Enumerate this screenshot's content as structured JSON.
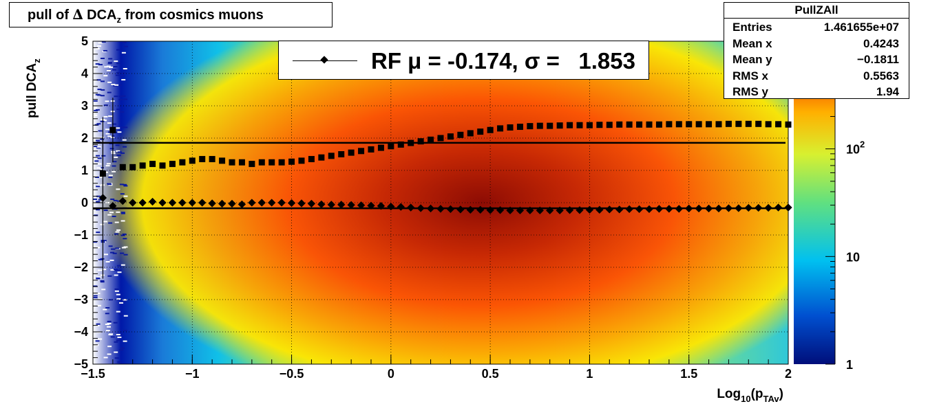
{
  "title": {
    "prefix": "pull of ",
    "delta": "∆",
    "main": " DCA",
    "sub": "z",
    "suffix": "from cosmics muons"
  },
  "stats": {
    "name": "PullZAll",
    "rows": [
      {
        "k": "Entries",
        "v": "1.461655e+07"
      },
      {
        "k": "Mean x",
        "v": "0.4243"
      },
      {
        "k": "Mean y",
        "v": "−0.1811"
      },
      {
        "k": "RMS x",
        "v": "0.5563"
      },
      {
        "k": "RMS y",
        "v": "1.94"
      }
    ]
  },
  "legend": {
    "text": "RF μ = -0.174, σ =   1.853"
  },
  "colors": {
    "marker": "#000000",
    "text": "#000000"
  },
  "chart_data": {
    "type": "heatmap",
    "xlabel": "Log10(pTAv)",
    "ylabel": "pull DCAz",
    "xlim": [
      -1.5,
      2
    ],
    "ylim": [
      -5,
      5
    ],
    "zscale": "log",
    "zlim": [
      1,
      1000
    ],
    "x_ticks": [
      "−1.5",
      "−1",
      "−0.5",
      "0",
      "0.5",
      "1",
      "1.5",
      "2"
    ],
    "y_ticks": [
      "−5",
      "−4",
      "−3",
      "−2",
      "−1",
      "0",
      "1",
      "2",
      "3",
      "4",
      "5"
    ],
    "z_ticks": [
      "1",
      "10",
      "10^2"
    ],
    "grid": true,
    "series": [
      {
        "name": "mean",
        "x": [
          -1.45,
          -1.4,
          -1.35,
          -1.3,
          -1.25,
          -1.2,
          -1.15,
          -1.1,
          -1.05,
          -1.0,
          -0.95,
          -0.9,
          -0.85,
          -0.8,
          -0.75,
          -0.7,
          -0.65,
          -0.6,
          -0.55,
          -0.5,
          -0.45,
          -0.4,
          -0.35,
          -0.3,
          -0.25,
          -0.2,
          -0.15,
          -0.1,
          -0.05,
          0.0,
          0.05,
          0.1,
          0.15,
          0.2,
          0.25,
          0.3,
          0.35,
          0.4,
          0.45,
          0.5,
          0.55,
          0.6,
          0.65,
          0.7,
          0.75,
          0.8,
          0.85,
          0.9,
          0.95,
          1.0,
          1.05,
          1.1,
          1.15,
          1.2,
          1.25,
          1.3,
          1.35,
          1.4,
          1.45,
          1.5,
          1.55,
          1.6,
          1.65,
          1.7,
          1.75,
          1.8,
          1.85,
          1.9,
          1.95,
          2.0
        ],
        "y": [
          0.15,
          -0.1,
          0.05,
          0.0,
          0.0,
          0.03,
          0.0,
          0.0,
          0.0,
          0.0,
          0.0,
          -0.02,
          -0.03,
          -0.03,
          -0.05,
          0.0,
          0.0,
          0.0,
          0.0,
          -0.01,
          -0.02,
          -0.03,
          -0.05,
          -0.06,
          -0.06,
          -0.07,
          -0.08,
          -0.09,
          -0.1,
          -0.12,
          -0.13,
          -0.15,
          -0.17,
          -0.18,
          -0.19,
          -0.2,
          -0.21,
          -0.22,
          -0.22,
          -0.23,
          -0.23,
          -0.24,
          -0.24,
          -0.24,
          -0.24,
          -0.24,
          -0.24,
          -0.23,
          -0.23,
          -0.22,
          -0.22,
          -0.21,
          -0.21,
          -0.2,
          -0.2,
          -0.2,
          -0.19,
          -0.19,
          -0.19,
          -0.18,
          -0.18,
          -0.18,
          -0.18,
          -0.17,
          -0.17,
          -0.16,
          -0.16,
          -0.16,
          -0.15,
          -0.15
        ]
      },
      {
        "name": "rms",
        "x": [
          -1.45,
          -1.4,
          -1.35,
          -1.3,
          -1.25,
          -1.2,
          -1.15,
          -1.1,
          -1.05,
          -1.0,
          -0.95,
          -0.9,
          -0.85,
          -0.8,
          -0.75,
          -0.7,
          -0.65,
          -0.6,
          -0.55,
          -0.5,
          -0.45,
          -0.4,
          -0.35,
          -0.3,
          -0.25,
          -0.2,
          -0.15,
          -0.1,
          -0.05,
          0.0,
          0.05,
          0.1,
          0.15,
          0.2,
          0.25,
          0.3,
          0.35,
          0.4,
          0.45,
          0.5,
          0.55,
          0.6,
          0.65,
          0.7,
          0.75,
          0.8,
          0.85,
          0.9,
          0.95,
          1.0,
          1.05,
          1.1,
          1.15,
          1.2,
          1.25,
          1.3,
          1.35,
          1.4,
          1.45,
          1.5,
          1.55,
          1.6,
          1.65,
          1.7,
          1.75,
          1.8,
          1.85,
          1.9,
          1.95,
          2.0
        ],
        "y": [
          0.9,
          2.25,
          1.1,
          1.1,
          1.15,
          1.2,
          1.15,
          1.2,
          1.25,
          1.3,
          1.35,
          1.35,
          1.3,
          1.25,
          1.25,
          1.2,
          1.25,
          1.25,
          1.25,
          1.27,
          1.3,
          1.35,
          1.4,
          1.45,
          1.5,
          1.55,
          1.6,
          1.65,
          1.7,
          1.75,
          1.8,
          1.85,
          1.9,
          1.95,
          2.0,
          2.05,
          2.1,
          2.15,
          2.2,
          2.25,
          2.3,
          2.33,
          2.35,
          2.37,
          2.38,
          2.38,
          2.39,
          2.4,
          2.4,
          2.4,
          2.41,
          2.41,
          2.42,
          2.42,
          2.42,
          2.42,
          2.42,
          2.43,
          2.43,
          2.43,
          2.43,
          2.43,
          2.43,
          2.44,
          2.44,
          2.44,
          2.44,
          2.43,
          2.43,
          2.42
        ]
      }
    ],
    "fits": [
      {
        "name": "mean-fit",
        "y": -0.174
      },
      {
        "name": "sigma-fit",
        "y": 1.853
      }
    ]
  }
}
